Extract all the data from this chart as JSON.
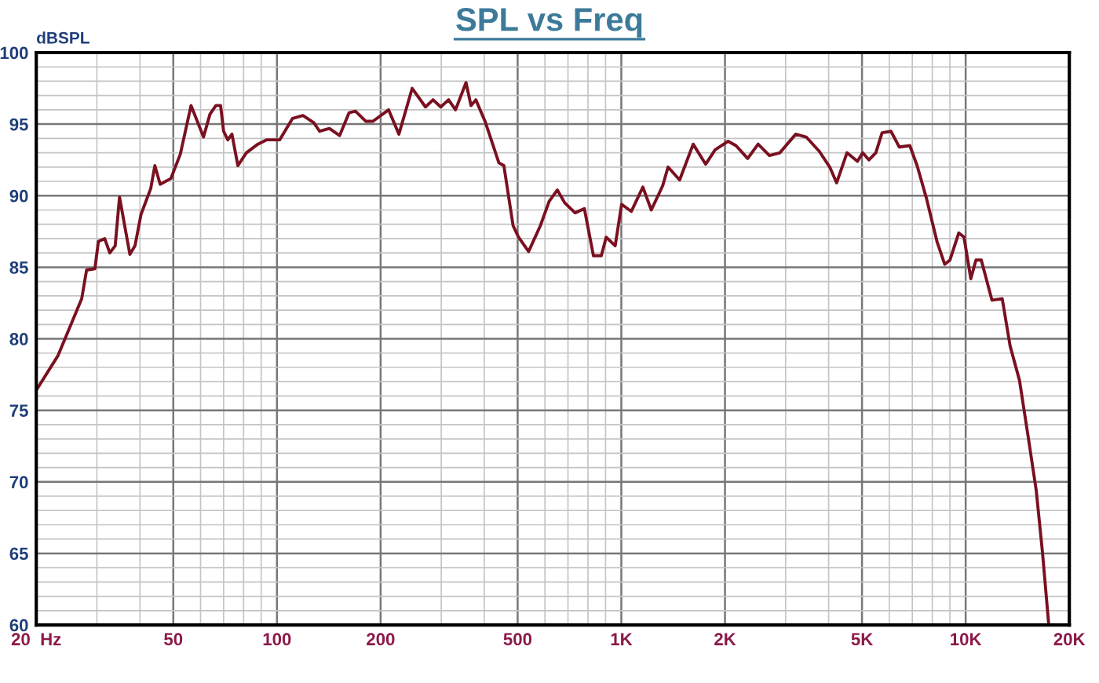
{
  "chart_data": {
    "type": "line",
    "title": "SPL vs Freq",
    "ylabel": "dBSPL",
    "log": "x",
    "grid": true,
    "marker": "none",
    "line_style": "solid",
    "xlim": [
      20,
      20000
    ],
    "ylim": [
      60,
      100
    ],
    "xticks": [
      {
        "value": 20,
        "label": "20  Hz"
      },
      50,
      100,
      200,
      500,
      {
        "value": 1000,
        "label": "1K"
      },
      {
        "value": 2000,
        "label": "2K"
      },
      {
        "value": 5000,
        "label": "5K"
      },
      {
        "value": 10000,
        "label": "10K"
      },
      {
        "value": 20000,
        "label": "20K"
      }
    ],
    "yticks": [
      60,
      65,
      70,
      75,
      80,
      85,
      90,
      95,
      100
    ],
    "series": [
      {
        "color": "#7a1020",
        "x": [
          20,
          23.1,
          27.1,
          28,
          29.6,
          30.3,
          31.6,
          32.7,
          33.9,
          34.9,
          37.4,
          38.7,
          40.3,
          43,
          44.2,
          45.8,
          49.2,
          52.4,
          56.3,
          61.2,
          63.9,
          66.5,
          68.6,
          70,
          72,
          74,
          77,
          81.5,
          88,
          93.2,
          101.8,
          111,
          119,
          128,
          133,
          142,
          152,
          162,
          169,
          181,
          190,
          211,
          226,
          247,
          270,
          284,
          299,
          315,
          330,
          354,
          366,
          378,
          402,
          441,
          456,
          485,
          503,
          538,
          582,
          617,
          652,
          685,
          734,
          781,
          830,
          875,
          904,
          960,
          1002,
          1069,
          1155,
          1222,
          1319,
          1367,
          1477,
          1617,
          1758,
          1872,
          2043,
          2153,
          2328,
          2496,
          2693,
          2888,
          3210,
          3443,
          3758,
          4030,
          4220,
          4522,
          4851,
          5024,
          5237,
          5484,
          5718,
          6069,
          6416,
          6884,
          7228,
          7696,
          8254,
          8691,
          9001,
          9551,
          9889,
          10350,
          10713,
          11100,
          11920,
          12770,
          13460,
          14330,
          15200,
          16030,
          16710,
          17430
        ],
        "values": [
          76.4,
          78.8,
          82.8,
          84.8,
          84.9,
          86.8,
          87.0,
          86.0,
          86.5,
          89.9,
          85.9,
          86.5,
          88.7,
          90.5,
          92.1,
          90.8,
          91.2,
          92.9,
          96.3,
          94.1,
          95.7,
          96.3,
          96.3,
          94.5,
          93.9,
          94.3,
          92.1,
          93.0,
          93.6,
          93.9,
          93.9,
          95.4,
          95.6,
          95.1,
          94.5,
          94.7,
          94.2,
          95.8,
          95.9,
          95.2,
          95.2,
          96.0,
          94.3,
          97.5,
          96.2,
          96.7,
          96.2,
          96.7,
          96.0,
          97.9,
          96.3,
          96.7,
          95.2,
          92.3,
          92.1,
          87.9,
          87.1,
          86.1,
          87.9,
          89.6,
          90.4,
          89.5,
          88.8,
          89.1,
          85.8,
          85.8,
          87.1,
          86.5,
          89.4,
          88.9,
          90.6,
          89.0,
          90.7,
          92.0,
          91.1,
          93.6,
          92.2,
          93.2,
          93.8,
          93.5,
          92.6,
          93.6,
          92.8,
          93.0,
          94.3,
          94.1,
          93.1,
          92.0,
          90.9,
          93.0,
          92.4,
          93.0,
          92.5,
          93.0,
          94.4,
          94.5,
          93.4,
          93.5,
          92.1,
          89.8,
          86.8,
          85.2,
          85.5,
          87.4,
          87.1,
          84.2,
          85.5,
          85.5,
          82.7,
          82.8,
          79.5,
          77.1,
          73.1,
          69.4,
          65.1,
          60.0
        ]
      }
    ]
  }
}
